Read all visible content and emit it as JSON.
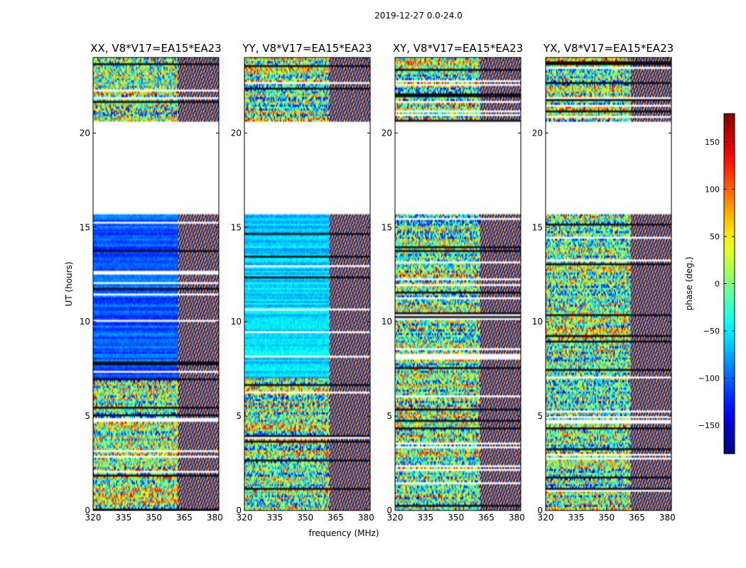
{
  "figure": {
    "suptitle": "2019-12-27 0.0-24.0",
    "xlabel": "frequency (MHz)",
    "ylabel": "UT (hours)"
  },
  "chart_data": {
    "type": "heatmap",
    "title": "2019-12-27 0.0-24.0",
    "xlabel": "frequency (MHz)",
    "ylabel": "UT (hours)",
    "xlim": [
      320,
      382
    ],
    "ylim": [
      0,
      24
    ],
    "xticks": [
      "320",
      "335",
      "350",
      "365",
      "380"
    ],
    "yticks": [
      "0",
      "5",
      "10",
      "15",
      "20"
    ],
    "xtick_values": [
      320,
      335,
      350,
      365,
      380
    ],
    "ytick_values": [
      0,
      5,
      10,
      15,
      20
    ],
    "panels": [
      {
        "title": "XX, V8*V17=EA15*EA23",
        "product": "XX"
      },
      {
        "title": "YY, V8*V17=EA15*EA23",
        "product": "YY"
      },
      {
        "title": "XY, V8*V17=EA15*EA23",
        "product": "XY"
      },
      {
        "title": "YX, V8*V17=EA15*EA23",
        "product": "YX"
      }
    ],
    "data_gaps_hours": [
      [
        20.6,
        15.7
      ]
    ],
    "colorbar": {
      "label": "phase (deg.)",
      "range": [
        -180,
        180
      ],
      "ticks": [
        "150",
        "100",
        "50",
        "0",
        "−50",
        "−100",
        "−150"
      ],
      "tick_values": [
        150,
        100,
        50,
        0,
        -50,
        -100,
        -150
      ],
      "colormap": "jet"
    }
  }
}
